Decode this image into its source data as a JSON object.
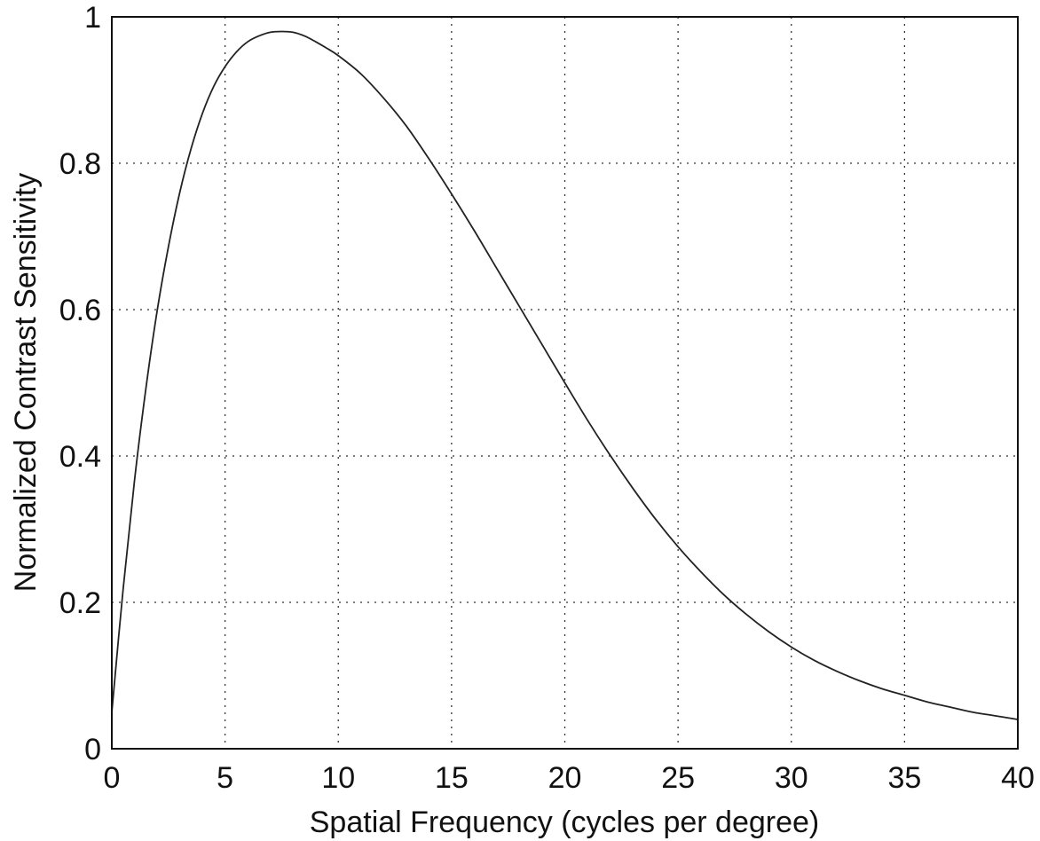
{
  "chart_data": {
    "type": "line",
    "title": "",
    "xlabel": "Spatial Frequency (cycles per degree)",
    "ylabel": "Normalized Contrast Sensitivity",
    "xlim": [
      0,
      40
    ],
    "ylim": [
      0,
      1
    ],
    "xticks": [
      "0",
      "5",
      "10",
      "15",
      "20",
      "25",
      "30",
      "35",
      "40"
    ],
    "yticks": [
      "0",
      "0.2",
      "0.4",
      "0.6",
      "0.8",
      "1"
    ],
    "grid": true,
    "series": [
      {
        "x": [
          0,
          0.5,
          1,
          1.5,
          2,
          2.5,
          3,
          3.5,
          4,
          4.5,
          5,
          5.5,
          6,
          6.5,
          7,
          7.5,
          8,
          8.5,
          9,
          9.5,
          10,
          11,
          12,
          13,
          14,
          15,
          16,
          17,
          18,
          19,
          20,
          21,
          22,
          23,
          24,
          25,
          26,
          27,
          28,
          29,
          30,
          31,
          32,
          33,
          34,
          35,
          36,
          37,
          38,
          39,
          40
        ],
        "y": [
          0.05,
          0.218,
          0.366,
          0.491,
          0.598,
          0.686,
          0.76,
          0.82,
          0.868,
          0.905,
          0.932,
          0.952,
          0.966,
          0.974,
          0.979,
          0.98,
          0.979,
          0.974,
          0.966,
          0.957,
          0.947,
          0.922,
          0.889,
          0.851,
          0.806,
          0.758,
          0.708,
          0.656,
          0.604,
          0.552,
          0.5,
          0.449,
          0.401,
          0.356,
          0.314,
          0.276,
          0.242,
          0.211,
          0.184,
          0.16,
          0.139,
          0.121,
          0.106,
          0.093,
          0.082,
          0.073,
          0.064,
          0.057,
          0.05,
          0.045,
          0.04
        ]
      }
    ]
  }
}
